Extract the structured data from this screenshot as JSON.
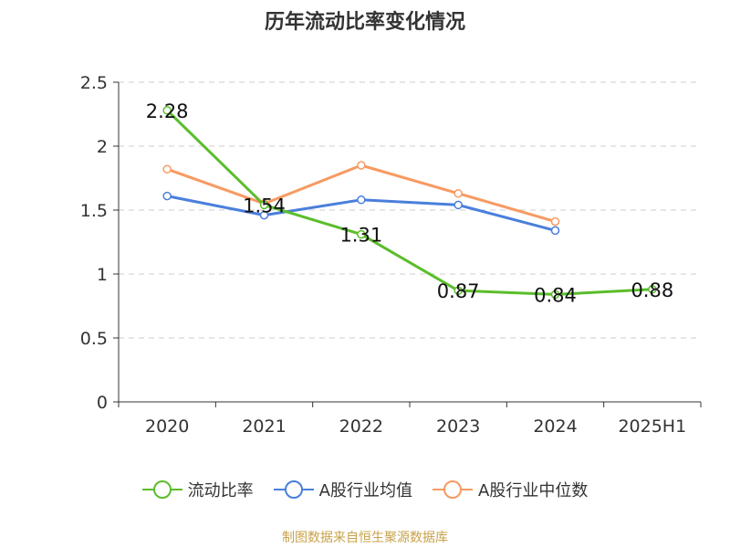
{
  "title": "历年流动比率变化情况",
  "source_note": "制图数据来自恒生聚源数据库",
  "chart_data": {
    "type": "line",
    "title": "历年流动比率变化情况",
    "categories": [
      "2020",
      "2021",
      "2022",
      "2023",
      "2024",
      "2025H1"
    ],
    "ylim": [
      0,
      2.5
    ],
    "yticks": [
      "0",
      "0.5",
      "1",
      "1.5",
      "2",
      "2.5"
    ],
    "ytick_values": [
      0,
      0.5,
      1,
      1.5,
      2,
      2.5
    ],
    "grid": true,
    "legend_position": "bottom",
    "series": [
      {
        "name": "流动比率",
        "color": "#5bbd2b",
        "values": [
          2.28,
          1.54,
          1.31,
          0.87,
          0.84,
          0.88
        ],
        "labels": [
          "2.28",
          "1.54",
          "1.31",
          "0.87",
          "0.84",
          "0.88"
        ]
      },
      {
        "name": "A股行业均值",
        "color": "#4a7fdc",
        "values": [
          1.61,
          1.46,
          1.58,
          1.54,
          1.34,
          null
        ]
      },
      {
        "name": "A股行业中位数",
        "color": "#f79a62",
        "values": [
          1.82,
          1.55,
          1.85,
          1.63,
          1.41,
          null
        ]
      }
    ]
  }
}
